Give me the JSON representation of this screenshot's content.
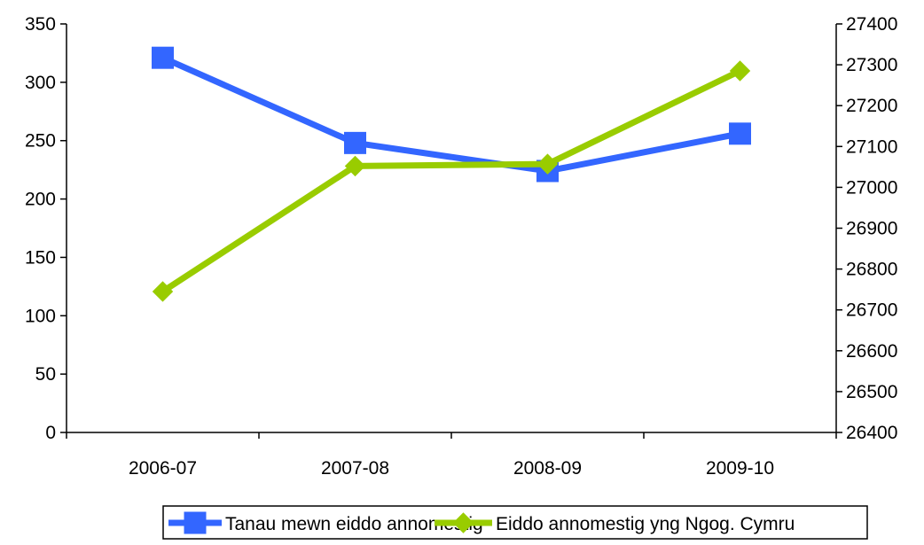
{
  "chart_data": {
    "type": "line",
    "categories": [
      "2006-07",
      "2007-08",
      "2008-09",
      "2009-10"
    ],
    "y_left": {
      "ylim": [
        0,
        350
      ],
      "ticks": [
        0,
        50,
        100,
        150,
        200,
        250,
        300,
        350
      ]
    },
    "y_right": {
      "ylim": [
        26400,
        27400
      ],
      "ticks": [
        26400,
        26500,
        26600,
        26700,
        26800,
        26900,
        27000,
        27100,
        27200,
        27300,
        27400
      ]
    },
    "series": [
      {
        "name": "Tanau mewn eiddo annomestig",
        "axis": "left",
        "marker": "square",
        "color": "#3366FF",
        "values": [
          321,
          248,
          224,
          256
        ]
      },
      {
        "name": "Eiddo annomestig yng Ngog. Cymru",
        "axis": "right",
        "marker": "diamond",
        "color": "#99CC00",
        "values": [
          26745,
          27052,
          27057,
          27285
        ]
      }
    ],
    "legend_position": "bottom",
    "grid": false
  }
}
